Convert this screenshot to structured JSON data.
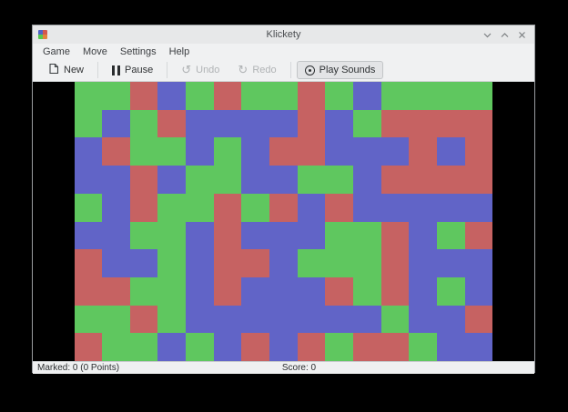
{
  "window": {
    "title": "Klickety",
    "app_icon_colors": [
      "#4f63c8",
      "#d4574e",
      "#55c84e",
      "#e2823c"
    ],
    "controls": [
      "minimize",
      "maximize",
      "close"
    ]
  },
  "menubar": {
    "items": [
      "Game",
      "Move",
      "Settings",
      "Help"
    ]
  },
  "toolbar": {
    "new_label": "New",
    "pause_label": "Pause",
    "undo_label": "Undo",
    "redo_label": "Redo",
    "play_sounds_label": "Play Sounds",
    "undo_enabled": false,
    "redo_enabled": false,
    "play_sounds_toggled": true
  },
  "board": {
    "rows": 10,
    "columns": 15,
    "palette": {
      "G": "#5fc75f",
      "R": "#c66262",
      "B": "#6164c7"
    },
    "grid": [
      "GGRBGRGGRGBGGGG",
      "GBGRBBBBRBGRRRR",
      "BRGGBGBRRBBBRBR",
      "BBRBGGBBGGBRRRR",
      "GBRGGRGRBRBBBBB",
      "BBGGBRBBBGGRBGR",
      "RBBGBRRBGGGRBBB",
      "RRGGBRBBBRGRBGB",
      "GGRGBBBBBBBGBBR",
      "RGGBGBRBRGRRGBB"
    ]
  },
  "statusbar": {
    "marked": "Marked: 0 (0 Points)",
    "score": "Score: 0"
  }
}
